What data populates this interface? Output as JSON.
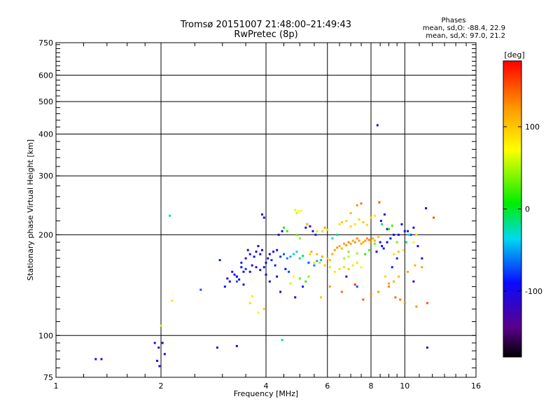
{
  "header": {
    "title_line1": "Tromsø 20151007 21:48:00–21:49:43",
    "title_line2": "RwPretec (8p)",
    "phase_title": "Phases",
    "phase_o": "mean, sd,O: -88.4, 22.9",
    "phase_x": "mean, sd,X:  97.0, 21.2"
  },
  "colorbar": {
    "label": "[deg]",
    "range": [
      -180,
      180
    ],
    "ticks": [
      100,
      0,
      -100
    ],
    "tick_labels": [
      "100",
      "0",
      "-100"
    ]
  },
  "chart_data": {
    "type": "scatter",
    "xlabel": "Frequency [MHz]",
    "ylabel": "Stationary phase Virtual Height [km]",
    "xscale": "log",
    "yscale": "log",
    "xlim": [
      1,
      16
    ],
    "ylim": [
      75,
      750
    ],
    "xticks": [
      1,
      2,
      4,
      6,
      8,
      10,
      16
    ],
    "xtick_labels": [
      "1",
      "2",
      "4",
      "6",
      "8",
      "10",
      "16"
    ],
    "yticks": [
      75,
      100,
      200,
      300,
      400,
      500,
      600,
      750
    ],
    "ytick_labels": [
      "75",
      "100",
      "200",
      "300",
      "400",
      "500",
      "600",
      "750"
    ],
    "grid": true,
    "groups": [
      {
        "name": "O",
        "color_meaning": "phase (deg)",
        "points": [
          [
            1.3,
            85,
            -105
          ],
          [
            1.35,
            85,
            -100
          ],
          [
            1.92,
            95,
            -110
          ],
          [
            1.97,
            92,
            -108
          ],
          [
            2.02,
            95,
            -112
          ],
          [
            2.05,
            88,
            -100
          ],
          [
            1.95,
            84,
            -95
          ],
          [
            1.98,
            81,
            -100
          ],
          [
            2.12,
            228,
            -20
          ],
          [
            2.6,
            137,
            -70
          ],
          [
            2.95,
            168,
            -85
          ],
          [
            3.05,
            140,
            -90
          ],
          [
            3.1,
            148,
            -100
          ],
          [
            3.15,
            145,
            -95
          ],
          [
            3.2,
            155,
            -105
          ],
          [
            3.25,
            152,
            -100
          ],
          [
            3.3,
            150,
            -110
          ],
          [
            3.35,
            147,
            -95
          ],
          [
            3.4,
            160,
            -90
          ],
          [
            3.45,
            155,
            -100
          ],
          [
            3.5,
            170,
            -100
          ],
          [
            3.55,
            180,
            -95
          ],
          [
            3.6,
            175,
            -105
          ],
          [
            3.4,
            165,
            -85
          ],
          [
            3.3,
            145,
            -70
          ],
          [
            3.5,
            158,
            -80
          ],
          [
            3.7,
            172,
            -95
          ],
          [
            3.75,
            178,
            -100
          ],
          [
            3.8,
            185,
            -105
          ],
          [
            3.85,
            175,
            -95
          ],
          [
            3.9,
            180,
            -100
          ],
          [
            3.95,
            160,
            -90
          ],
          [
            4.0,
            165,
            -95
          ],
          [
            4.05,
            170,
            -105
          ],
          [
            4.1,
            175,
            -100
          ],
          [
            4.2,
            178,
            -95
          ],
          [
            4.3,
            180,
            -90
          ],
          [
            4.4,
            172,
            -80
          ],
          [
            4.5,
            175,
            -70
          ],
          [
            4.6,
            170,
            -60
          ],
          [
            4.7,
            172,
            -50
          ],
          [
            4.8,
            175,
            -40
          ],
          [
            4.9,
            178,
            -30
          ],
          [
            5.0,
            170,
            -20
          ],
          [
            5.1,
            173,
            -10
          ],
          [
            4.35,
            200,
            -100
          ],
          [
            4.45,
            205,
            -95
          ],
          [
            3.95,
            225,
            -110
          ],
          [
            3.9,
            230,
            -105
          ],
          [
            4.15,
            168,
            -80
          ],
          [
            4.25,
            162,
            -85
          ],
          [
            4.55,
            158,
            -90
          ],
          [
            4.65,
            155,
            -75
          ],
          [
            4.3,
            150,
            -100
          ],
          [
            4.1,
            145,
            -95
          ],
          [
            4.0,
            152,
            -90
          ],
          [
            3.85,
            157,
            -85
          ],
          [
            3.75,
            160,
            -110
          ],
          [
            3.65,
            162,
            -105
          ],
          [
            3.6,
            155,
            -95
          ],
          [
            3.45,
            142,
            -90
          ],
          [
            3.3,
            150,
            -100
          ],
          [
            2.9,
            92,
            -110
          ],
          [
            3.3,
            93,
            -100
          ],
          [
            4.4,
            135,
            -100
          ],
          [
            4.85,
            130,
            -90
          ],
          [
            5.1,
            140,
            -85
          ],
          [
            5.3,
            165,
            -70
          ],
          [
            5.5,
            162,
            -60
          ],
          [
            5.6,
            167,
            -50
          ],
          [
            5.75,
            168,
            -40
          ],
          [
            5.8,
            172,
            -30
          ],
          [
            5.2,
            210,
            -100
          ],
          [
            5.25,
            215,
            -95
          ],
          [
            5.35,
            212,
            -105
          ],
          [
            5.45,
            205,
            -90
          ],
          [
            5.55,
            200,
            -85
          ],
          [
            8.3,
            178,
            -95
          ],
          [
            8.5,
            190,
            -100
          ],
          [
            8.6,
            185,
            -90
          ],
          [
            8.7,
            182,
            -85
          ],
          [
            8.9,
            190,
            -100
          ],
          [
            9.1,
            195,
            -95
          ],
          [
            9.3,
            200,
            -90
          ],
          [
            9.6,
            200,
            -100
          ],
          [
            10.0,
            205,
            -95
          ],
          [
            10.2,
            205,
            -110
          ],
          [
            10.6,
            210,
            -100
          ],
          [
            9.8,
            215,
            -90
          ],
          [
            8.9,
            208,
            -100
          ],
          [
            8.55,
            220,
            -95
          ],
          [
            8.75,
            230,
            -100
          ],
          [
            8.35,
            425,
            -90
          ],
          [
            10.4,
            200,
            -80
          ],
          [
            10.9,
            185,
            -90
          ],
          [
            11.2,
            170,
            -100
          ],
          [
            10.6,
            145,
            -110
          ],
          [
            11.5,
            240,
            -100
          ],
          [
            11.6,
            92,
            -110
          ],
          [
            9.5,
            170,
            -80
          ],
          [
            9.2,
            160,
            -85
          ],
          [
            6.8,
            150,
            -95
          ],
          [
            7.3,
            140,
            -70
          ]
        ]
      },
      {
        "name": "X",
        "color_meaning": "phase (deg)",
        "points": [
          [
            2.0,
            107,
            60
          ],
          [
            2.15,
            127,
            85
          ],
          [
            3.6,
            125,
            90
          ],
          [
            3.65,
            131,
            80
          ],
          [
            3.95,
            120,
            95
          ],
          [
            3.8,
            117,
            70
          ],
          [
            4.45,
            97,
            -20
          ],
          [
            4.85,
            237,
            65
          ],
          [
            4.95,
            235,
            70
          ],
          [
            5.05,
            236,
            75
          ],
          [
            4.9,
            232,
            60
          ],
          [
            5.25,
            215,
            100
          ],
          [
            5.6,
            205,
            85
          ],
          [
            5.8,
            205,
            90
          ],
          [
            6.0,
            207,
            95
          ],
          [
            5.9,
            210,
            120
          ],
          [
            5.4,
            178,
            115
          ],
          [
            5.6,
            175,
            105
          ],
          [
            5.8,
            172,
            110
          ],
          [
            6.0,
            170,
            100
          ],
          [
            6.1,
            168,
            105
          ],
          [
            6.2,
            175,
            115
          ],
          [
            6.3,
            180,
            120
          ],
          [
            6.4,
            183,
            125
          ],
          [
            6.5,
            185,
            115
          ],
          [
            6.6,
            182,
            110
          ],
          [
            6.7,
            188,
            120
          ],
          [
            6.8,
            186,
            125
          ],
          [
            6.9,
            190,
            130
          ],
          [
            7.0,
            188,
            120
          ],
          [
            7.1,
            192,
            115
          ],
          [
            7.2,
            190,
            125
          ],
          [
            7.3,
            195,
            130
          ],
          [
            7.4,
            192,
            120
          ],
          [
            7.5,
            188,
            115
          ],
          [
            7.6,
            190,
            110
          ],
          [
            7.7,
            192,
            120
          ],
          [
            7.8,
            195,
            125
          ],
          [
            7.9,
            193,
            130
          ],
          [
            8.0,
            190,
            120
          ],
          [
            8.1,
            195,
            115
          ],
          [
            8.2,
            192,
            110
          ],
          [
            8.4,
            197,
            100
          ],
          [
            5.35,
            175,
            95
          ],
          [
            5.5,
            165,
            90
          ],
          [
            5.7,
            165,
            95
          ],
          [
            5.9,
            162,
            100
          ],
          [
            6.1,
            160,
            90
          ],
          [
            6.3,
            155,
            85
          ],
          [
            6.5,
            158,
            90
          ],
          [
            6.7,
            160,
            95
          ],
          [
            6.9,
            158,
            100
          ],
          [
            7.1,
            162,
            85
          ],
          [
            7.3,
            165,
            90
          ],
          [
            7.5,
            160,
            80
          ],
          [
            6.5,
            215,
            90
          ],
          [
            6.6,
            218,
            100
          ],
          [
            6.8,
            220,
            95
          ],
          [
            7.0,
            212,
            90
          ],
          [
            7.2,
            215,
            85
          ],
          [
            7.4,
            222,
            95
          ],
          [
            7.6,
            218,
            100
          ],
          [
            7.8,
            214,
            90
          ],
          [
            8.0,
            225,
            95
          ],
          [
            8.2,
            228,
            85
          ],
          [
            7.3,
            245,
            125
          ],
          [
            7.5,
            248,
            140
          ],
          [
            8.45,
            250,
            150
          ],
          [
            7.0,
            232,
            110
          ],
          [
            5.75,
            130,
            100
          ],
          [
            6.1,
            140,
            120
          ],
          [
            6.6,
            135,
            140
          ],
          [
            7.2,
            142,
            160
          ],
          [
            7.6,
            128,
            150
          ],
          [
            8.0,
            133,
            130
          ],
          [
            8.4,
            135,
            120
          ],
          [
            9.0,
            140,
            130
          ],
          [
            9.4,
            130,
            140
          ],
          [
            9.7,
            128,
            135
          ],
          [
            10.0,
            125,
            130
          ],
          [
            10.8,
            122,
            125
          ],
          [
            11.6,
            125,
            150
          ],
          [
            12.1,
            225,
            150
          ],
          [
            11.2,
            160,
            120
          ],
          [
            10.7,
            162,
            110
          ],
          [
            10.2,
            155,
            115
          ],
          [
            9.6,
            150,
            105
          ],
          [
            9.3,
            145,
            110
          ],
          [
            9.0,
            143,
            120
          ],
          [
            8.8,
            150,
            95
          ],
          [
            9.3,
            175,
            90
          ],
          [
            9.6,
            178,
            100
          ],
          [
            9.9,
            180,
            80
          ],
          [
            10.6,
            190,
            70
          ],
          [
            10.8,
            200,
            60
          ],
          [
            5.2,
            145,
            20
          ],
          [
            5.3,
            150,
            40
          ],
          [
            5.0,
            148,
            30
          ],
          [
            4.7,
            143,
            55
          ],
          [
            4.8,
            150,
            70
          ],
          [
            5.0,
            195,
            40
          ],
          [
            4.9,
            200,
            30
          ],
          [
            4.6,
            205,
            20
          ],
          [
            4.5,
            210,
            10
          ],
          [
            8.6,
            215,
            -10
          ],
          [
            9.0,
            208,
            10
          ],
          [
            9.2,
            213,
            20
          ],
          [
            9.5,
            190,
            35
          ],
          [
            6.2,
            195,
            -30
          ],
          [
            6.4,
            200,
            -20
          ],
          [
            10.3,
            200,
            -25
          ],
          [
            10.1,
            190,
            -15
          ],
          [
            8.2,
            188,
            35
          ],
          [
            7.9,
            180,
            25
          ],
          [
            7.7,
            175,
            15
          ],
          [
            7.3,
            176,
            45
          ],
          [
            6.9,
            178,
            40
          ],
          [
            6.7,
            170,
            50
          ],
          [
            6.9,
            172,
            55
          ]
        ]
      }
    ]
  }
}
